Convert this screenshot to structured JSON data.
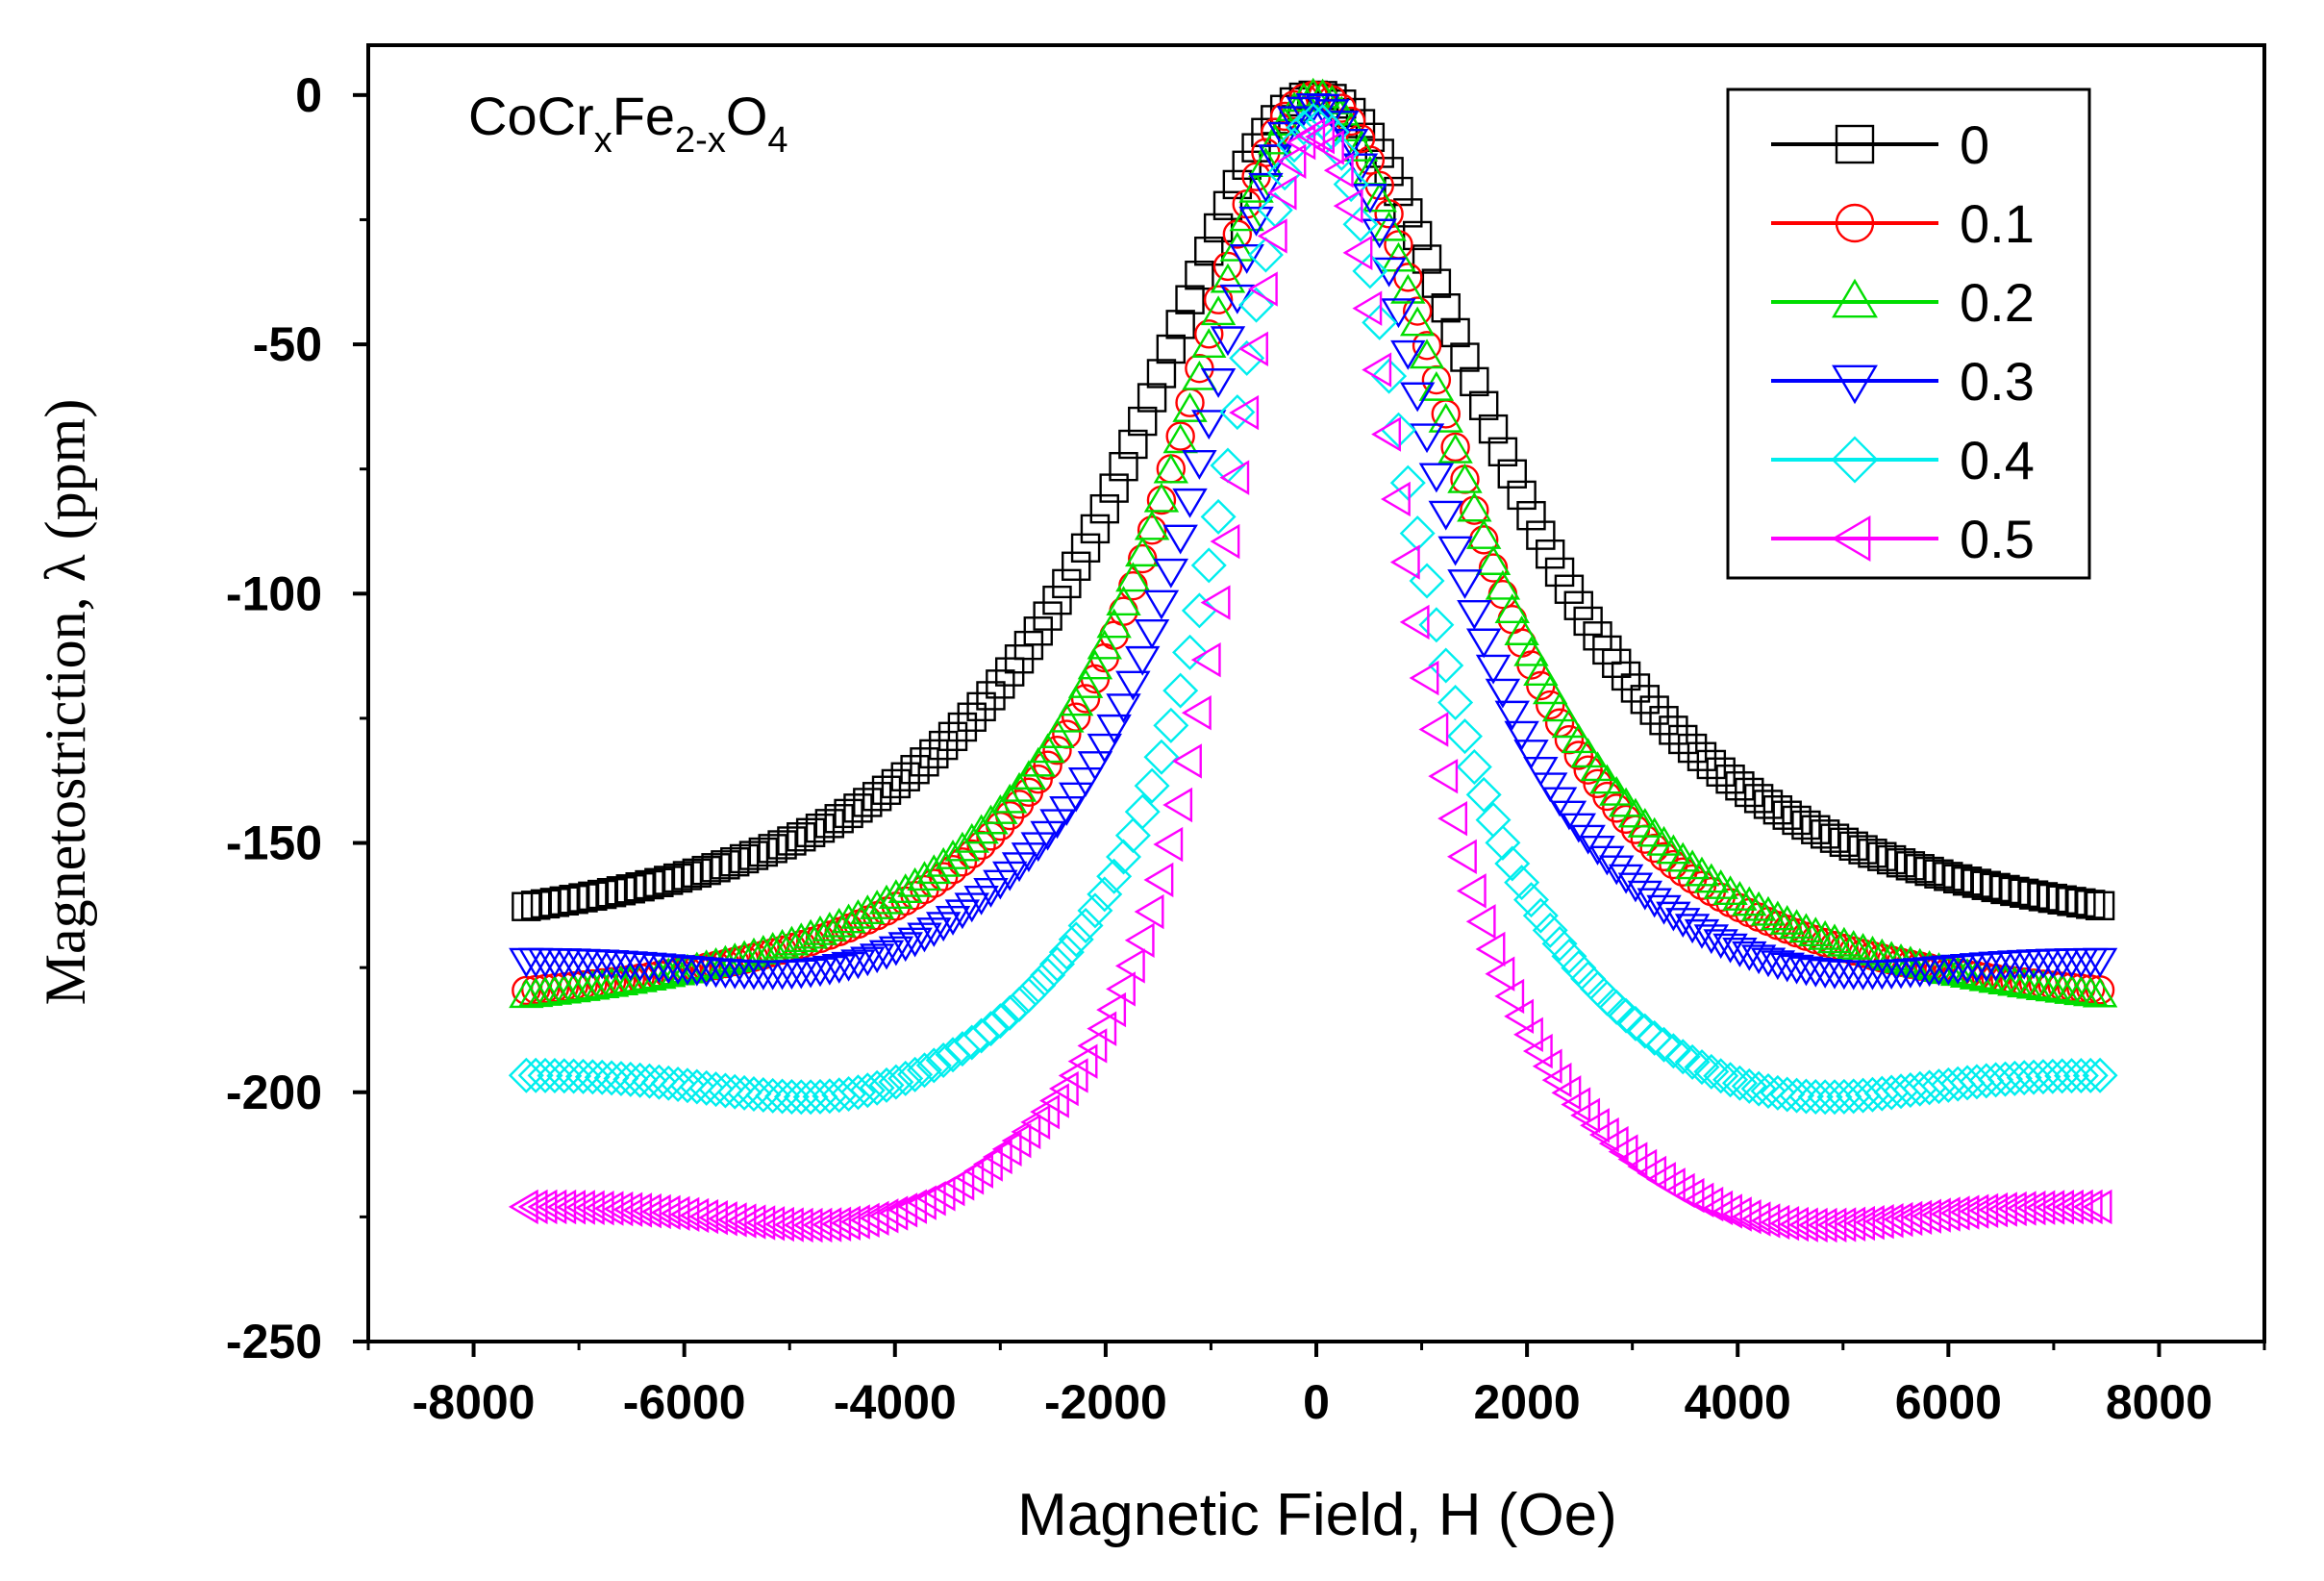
{
  "chart_data": {
    "type": "scatter",
    "title": "",
    "annotation": {
      "base": "CoCr",
      "sub1": "x",
      "mid": "Fe",
      "sub2": "2-x",
      "end": "O",
      "sub3": "4"
    },
    "xlabel": "Magnetic Field, H (Oe)",
    "ylabel": "Magnetostriction, λ (ppm)",
    "xlim": [
      -9000,
      9000
    ],
    "ylim": [
      -250,
      10
    ],
    "xticks": [
      -8000,
      -6000,
      -4000,
      -2000,
      0,
      2000,
      4000,
      6000,
      8000
    ],
    "yticks": [
      0,
      -50,
      -100,
      -150,
      -200,
      -250
    ],
    "xtick_labels": [
      "-8000",
      "-6000",
      "-4000",
      "-2000",
      "0",
      "2000",
      "4000",
      "6000",
      "8000"
    ],
    "ytick_labels": [
      "0",
      "-50",
      "-100",
      "-150",
      "-200",
      "-250"
    ],
    "field_range": [
      -7500,
      7500
    ],
    "legend_position": "top-right",
    "series": [
      {
        "name": "0",
        "color": "#000000",
        "marker": "square",
        "peak": 0,
        "half_width": 2100,
        "shape": 2.1,
        "end_value": -174,
        "dip": 0,
        "dip_center": 0
      },
      {
        "name": "0.1",
        "color": "#ff0000",
        "marker": "circle",
        "peak": 0,
        "half_width": 1650,
        "shape": 2.2,
        "end_value": -186,
        "dip": 0,
        "dip_center": 0
      },
      {
        "name": "0.2",
        "color": "#00dd00",
        "marker": "triangle-up",
        "peak": 0,
        "half_width": 1700,
        "shape": 2.0,
        "end_value": -190,
        "dip": 0,
        "dip_center": 0
      },
      {
        "name": "0.3",
        "color": "#0000ff",
        "marker": "triangle-down",
        "peak": -2,
        "half_width": 1300,
        "shape": 2.3,
        "end_value": -176,
        "dip": 8,
        "dip_center": 4500
      },
      {
        "name": "0.4",
        "color": "#00eeee",
        "marker": "diamond",
        "peak": -5,
        "half_width": 1100,
        "shape": 2.2,
        "end_value": -199,
        "dip": 10,
        "dip_center": 4300
      },
      {
        "name": "0.5",
        "color": "#ff00ff",
        "marker": "triangle-left",
        "peak": -8,
        "half_width": 1050,
        "shape": 2.3,
        "end_value": -225,
        "dip": 9,
        "dip_center": 4200
      }
    ]
  }
}
